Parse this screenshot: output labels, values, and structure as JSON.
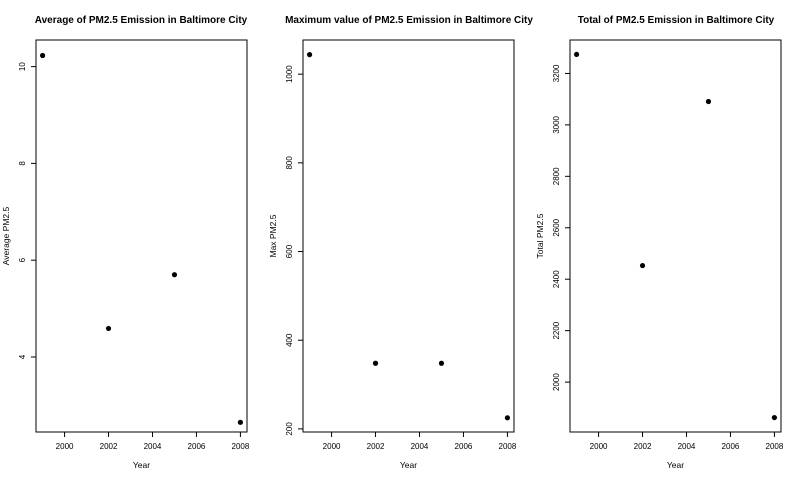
{
  "chart_data": [
    {
      "type": "scatter",
      "title": "Average of PM2.5 Emission in Baltimore City",
      "xlabel": "Year",
      "ylabel": "Average PM2.5",
      "x": [
        1999,
        2002,
        2005,
        2008
      ],
      "y": [
        10.23,
        4.59,
        5.7,
        2.65
      ],
      "xlim": [
        1998.7,
        2008.3
      ],
      "ylim": [
        2.45,
        10.55
      ],
      "xticks": [
        2000,
        2002,
        2004,
        2006,
        2008
      ],
      "yticks": [
        4,
        6,
        8,
        10
      ],
      "grid": false,
      "marker_color": "#000000"
    },
    {
      "type": "scatter",
      "title": "Maximum value of PM2.5 Emission in Baltimore City",
      "xlabel": "Year",
      "ylabel": "Max PM2.5",
      "x": [
        1999,
        2002,
        2005,
        2008
      ],
      "y": [
        1044,
        348,
        348,
        225
      ],
      "xlim": [
        1998.7,
        2008.3
      ],
      "ylim": [
        193,
        1077
      ],
      "xticks": [
        2000,
        2002,
        2004,
        2006,
        2008
      ],
      "yticks": [
        200,
        400,
        600,
        800,
        1000
      ],
      "grid": false,
      "marker_color": "#000000"
    },
    {
      "type": "scatter",
      "title": "Total of PM2.5 Emission in Baltimore City",
      "xlabel": "Year",
      "ylabel": "Total PM2.5",
      "x": [
        1999,
        2002,
        2005,
        2008
      ],
      "y": [
        3274,
        2453,
        3091,
        1862
      ],
      "xlim": [
        1998.7,
        2008.3
      ],
      "ylim": [
        1806,
        3330
      ],
      "xticks": [
        2000,
        2002,
        2004,
        2006,
        2008
      ],
      "yticks": [
        2000,
        2200,
        2400,
        2600,
        2800,
        3000,
        3200
      ],
      "grid": false,
      "marker_color": "#000000"
    }
  ]
}
